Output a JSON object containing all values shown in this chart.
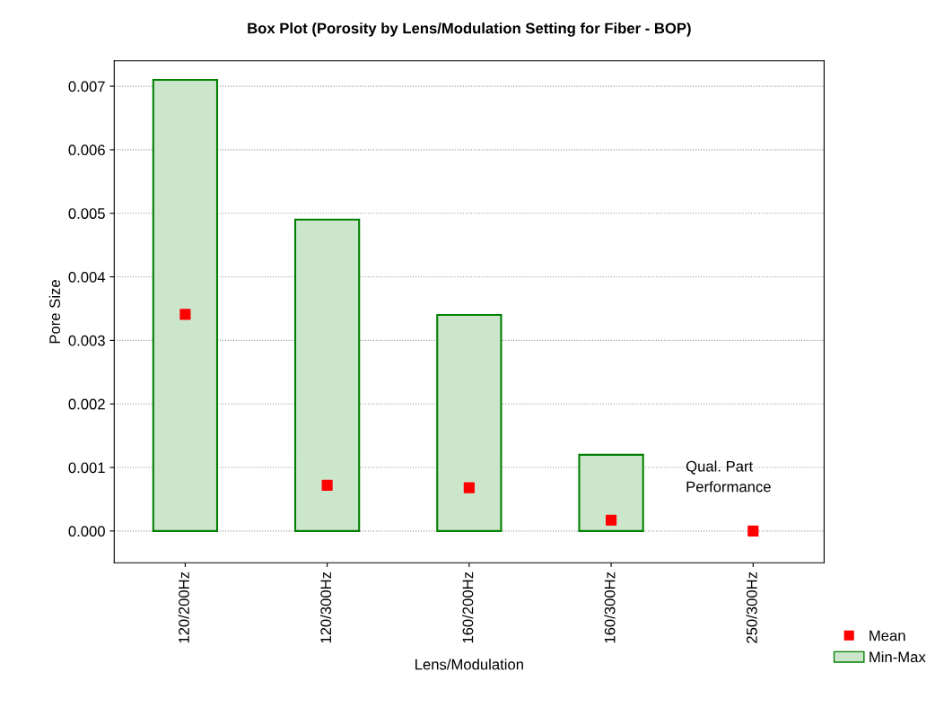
{
  "chart_data": {
    "type": "bar",
    "title": "Box Plot (Porosity by Lens/Modulation Setting for Fiber - BOP)",
    "xlabel": "Lens/Modulation",
    "ylabel": "Pore Size",
    "categories": [
      "120/200Hz",
      "120/300Hz",
      "160/200Hz",
      "160/300Hz",
      "250/300Hz"
    ],
    "series": [
      {
        "name": "Mean",
        "type": "scatter",
        "color": "#ff0000",
        "marker": "square",
        "values": [
          0.00341,
          0.00072,
          0.00068,
          0.00017,
          0.0
        ]
      },
      {
        "name": "Min-Max",
        "color": "#cce6cc",
        "values": [
          0.0071,
          0.0049,
          0.0034,
          0.0012,
          null
        ],
        "base": [
          0,
          0,
          0,
          0,
          null
        ]
      }
    ],
    "ylim": [
      -0.0005,
      0.0074
    ],
    "yticks": [
      {
        "value": 0,
        "label": "0.000"
      },
      {
        "value": 0.001,
        "label": "0.001"
      },
      {
        "value": 0.002,
        "label": "0.002"
      },
      {
        "value": 0.003,
        "label": "0.003"
      },
      {
        "value": 0.004,
        "label": "0.004"
      },
      {
        "value": 0.005,
        "label": "0.005"
      },
      {
        "value": 0.006,
        "label": "0.006"
      },
      {
        "value": 0.007,
        "label": "0.007"
      }
    ],
    "grid": "y",
    "legend": "bottom right",
    "annotations": [
      "Qual. Part\nPerformance"
    ]
  }
}
